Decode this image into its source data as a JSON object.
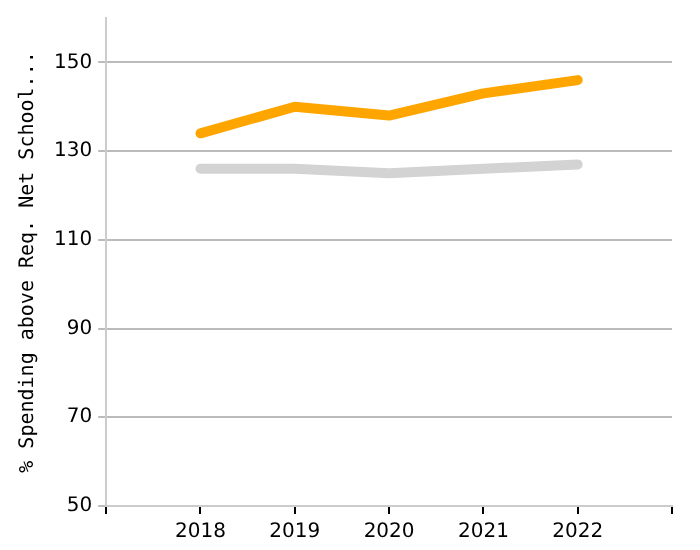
{
  "chart_data": {
    "type": "line",
    "ylabel": "% Spending above Req. Net School...",
    "categories": [
      "2018",
      "2019",
      "2020",
      "2021",
      "2022"
    ],
    "series": [
      {
        "color": "#ffa500",
        "values": [
          134,
          140,
          138,
          143,
          146
        ]
      },
      {
        "color": "#d3d3d3",
        "values": [
          126,
          126,
          125,
          126,
          127
        ]
      }
    ],
    "ylim": [
      50,
      160
    ],
    "yticks": [
      50,
      70,
      90,
      110,
      130,
      150
    ],
    "grid": "y",
    "legend": false,
    "marker": "none",
    "line_style": "solid"
  }
}
